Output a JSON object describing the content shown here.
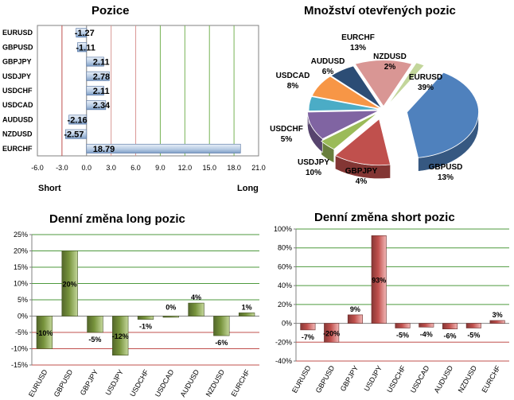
{
  "chart_data": [
    {
      "type": "bar",
      "orientation": "horizontal",
      "title": "Pozice",
      "categories": [
        "EURUSD",
        "GBPUSD",
        "GBPJPY",
        "USDJPY",
        "USDCHF",
        "USDCAD",
        "AUDUSD",
        "NZDUSD",
        "EURCHF"
      ],
      "values": [
        -1.27,
        -1.11,
        2.11,
        2.78,
        2.11,
        2.34,
        -2.16,
        -2.57,
        18.79
      ],
      "value_labels": [
        "-1.27",
        "-1.11",
        "2.11",
        "2.78",
        "2.11",
        "2.34",
        "-2.16",
        "-2.57",
        "18.79"
      ],
      "xlim": [
        -6,
        21
      ],
      "xticks": [
        "-6.0",
        "-3.0",
        "0.0",
        "3.0",
        "6.0",
        "9.0",
        "12.0",
        "15.0",
        "18.0",
        "21.0"
      ],
      "left_label": "Short",
      "right_label": "Long",
      "bar_color": "#b8cce4",
      "grid": "vertical"
    },
    {
      "type": "pie",
      "title": "Množství otevřených pozic",
      "slices": [
        {
          "label": "EURUSD",
          "value": 39,
          "text": "39%",
          "color": "#4f81bd"
        },
        {
          "label": "GBPUSD",
          "value": 13,
          "text": "13%",
          "color": "#c0504d"
        },
        {
          "label": "GBPJPY",
          "value": 4,
          "text": "4%",
          "color": "#9bbb59"
        },
        {
          "label": "USDJPY",
          "value": 10,
          "text": "10%",
          "color": "#8064a2"
        },
        {
          "label": "USDCHF",
          "value": 5,
          "text": "5%",
          "color": "#4bacc6"
        },
        {
          "label": "USDCAD",
          "value": 8,
          "text": "8%",
          "color": "#f79646"
        },
        {
          "label": "AUDUSD",
          "value": 6,
          "text": "6%",
          "color": "#2c4d75"
        },
        {
          "label": "EURCHF",
          "value": 13,
          "text": "13%",
          "color": "#d99694"
        },
        {
          "label": "NZDUSD",
          "value": 2,
          "text": "2%",
          "color": "#c3d69b"
        }
      ]
    },
    {
      "type": "bar",
      "title": "Denní změna long pozic",
      "categories": [
        "EURUSD",
        "GBPUSD",
        "GBPJPY",
        "USDJPY",
        "USDCHF",
        "USDCAD",
        "AUDUSD",
        "NZDUSD",
        "EURCHF"
      ],
      "values": [
        -10,
        20,
        -5,
        -12,
        -1,
        0,
        4,
        -6,
        1
      ],
      "value_labels": [
        "-10%",
        "20%",
        "-5%",
        "-12%",
        "-1%",
        "0%",
        "4%",
        "-6%",
        "1%"
      ],
      "ylim": [
        -15,
        25
      ],
      "yticks": [
        "-15%",
        "-10%",
        "-5%",
        "0%",
        "5%",
        "10%",
        "15%",
        "20%",
        "25%"
      ],
      "bar_color": "#77933c",
      "grid": "horizontal"
    },
    {
      "type": "bar",
      "title": "Denní změna short pozic",
      "categories": [
        "EURUSD",
        "GBPUSD",
        "GBPJPY",
        "USDJPY",
        "USDCHF",
        "USDCAD",
        "AUDUSD",
        "NZDUSD",
        "EURCHF"
      ],
      "values": [
        -7,
        -20,
        9,
        93,
        -5,
        -4,
        -6,
        -5,
        3
      ],
      "value_labels": [
        "-7%",
        "-20%",
        "9%",
        "93%",
        "-5%",
        "-4%",
        "-6%",
        "-5%",
        "3%"
      ],
      "ylim": [
        -40,
        100
      ],
      "yticks": [
        "-40%",
        "-20%",
        "0%",
        "20%",
        "40%",
        "60%",
        "80%",
        "100%"
      ],
      "bar_color": "#c0504d",
      "grid": "horizontal"
    }
  ]
}
